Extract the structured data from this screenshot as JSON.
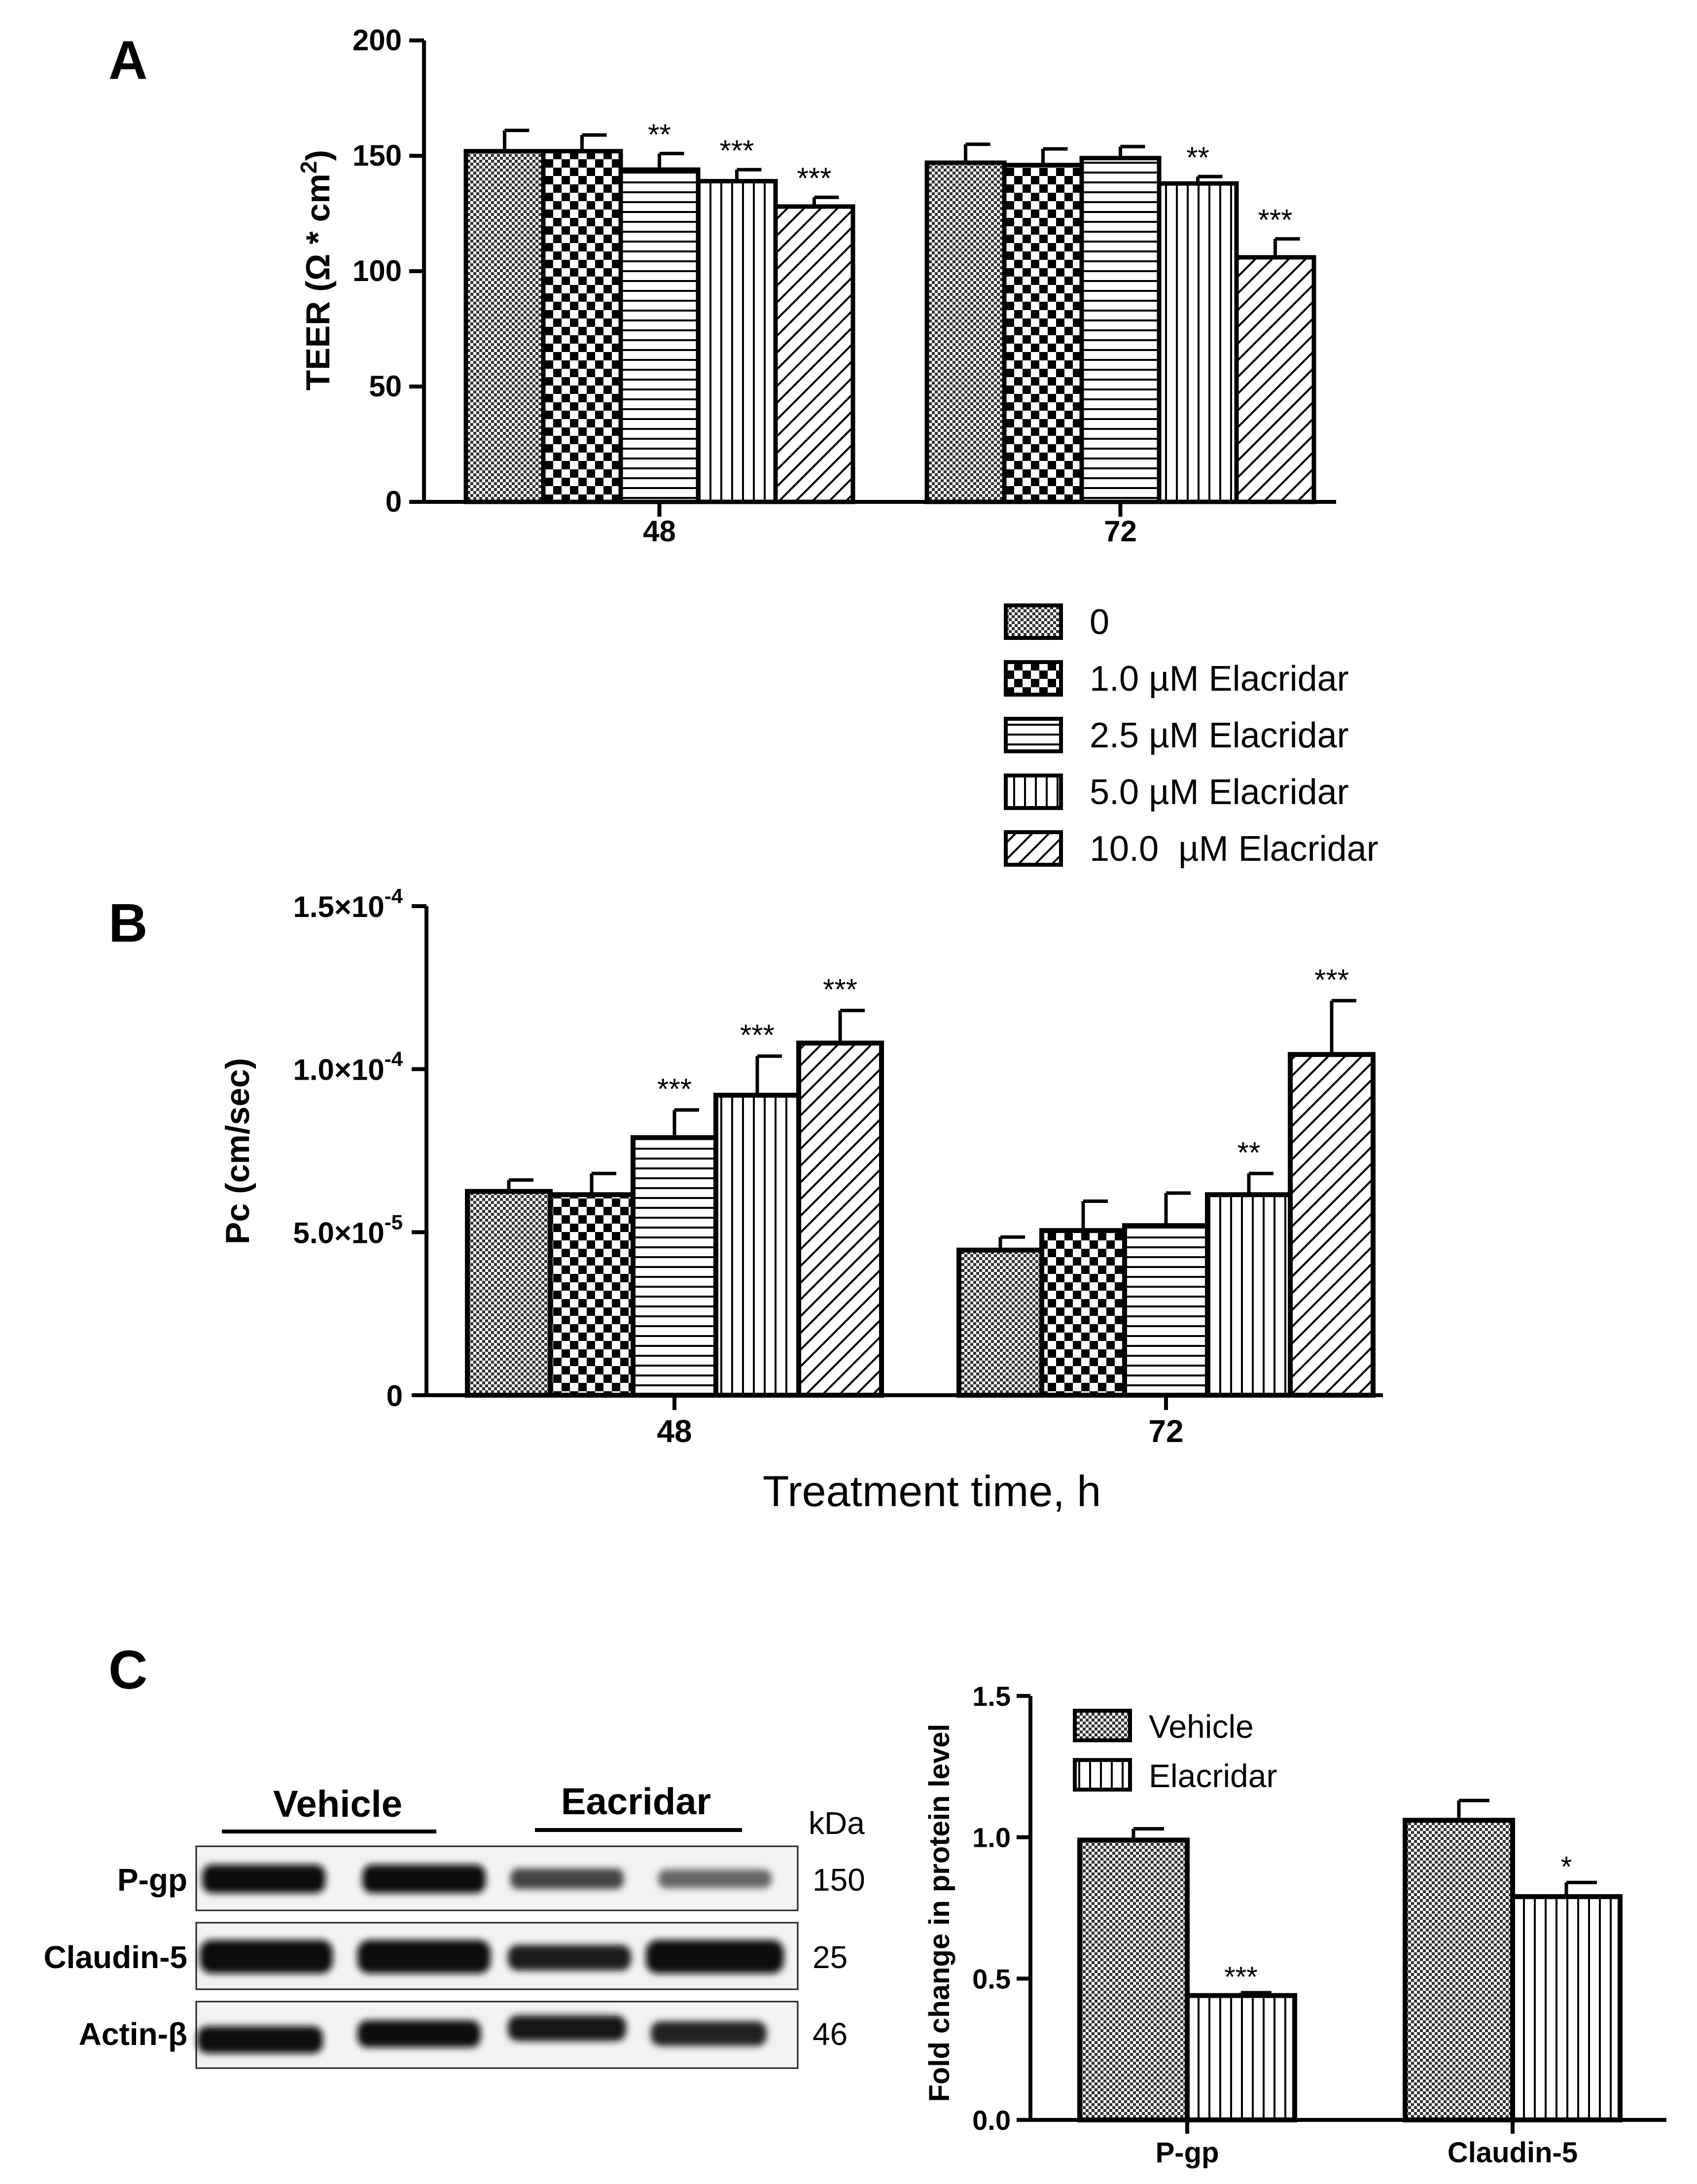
{
  "chart_data": [
    {
      "id": "A",
      "type": "bar",
      "panel_label": "A",
      "title": "",
      "xlabel": "",
      "ylabel": "TEER (Ω * cm",
      "ylabel_sup": "2",
      "ylabel_tail": ")",
      "ylim": [
        0,
        200
      ],
      "yticks": [
        "0",
        "50",
        "100",
        "150",
        "200"
      ],
      "categories": [
        "48",
        "72"
      ],
      "series": [
        {
          "name": "0",
          "pattern": "checker-fine",
          "values": [
            152,
            147
          ],
          "errors": [
            9,
            8
          ],
          "sig": [
            "",
            ""
          ]
        },
        {
          "name": "1.0 µM Elacridar",
          "pattern": "checker-coarse",
          "values": [
            152,
            146
          ],
          "errors": [
            7,
            7
          ],
          "sig": [
            "",
            ""
          ]
        },
        {
          "name": "2.5 µM Elacridar",
          "pattern": "horizontal",
          "values": [
            144,
            149
          ],
          "errors": [
            7,
            5
          ],
          "sig": [
            "**",
            ""
          ]
        },
        {
          "name": "5.0 µM Elacridar",
          "pattern": "vertical",
          "values": [
            139,
            138
          ],
          "errors": [
            5,
            3
          ],
          "sig": [
            "***",
            "**"
          ]
        },
        {
          "name": "10.0 µM Elacridar",
          "pattern": "diagonal",
          "values": [
            128,
            106
          ],
          "errors": [
            4,
            8
          ],
          "sig": [
            "***",
            "***"
          ]
        }
      ]
    },
    {
      "id": "B",
      "type": "bar",
      "panel_label": "B",
      "title": "",
      "xlabel": "Treatment time, h",
      "ylabel": "Pc (cm/sec)",
      "ylim": [
        0,
        0.00015
      ],
      "yticks": [
        {
          "base": "0",
          "exp": ""
        },
        {
          "base": "5.0×10",
          "exp": "-5"
        },
        {
          "base": "1.0×10",
          "exp": "-4"
        },
        {
          "base": "1.5×10",
          "exp": "-4"
        }
      ],
      "categories": [
        "48",
        "72"
      ],
      "series": [
        {
          "name": "0",
          "pattern": "checker-fine",
          "values": [
            6.25e-05,
            4.45e-05
          ],
          "errors": [
            3.5e-06,
            4e-06
          ],
          "sig": [
            "",
            ""
          ]
        },
        {
          "name": "1.0 µM Elacridar",
          "pattern": "checker-coarse",
          "values": [
            6.15e-05,
            5.05e-05
          ],
          "errors": [
            6.5e-06,
            9e-06
          ],
          "sig": [
            "",
            ""
          ]
        },
        {
          "name": "2.5 µM Elacridar",
          "pattern": "horizontal",
          "values": [
            7.9e-05,
            5.2e-05
          ],
          "errors": [
            8.5e-06,
            1e-05
          ],
          "sig": [
            "***",
            ""
          ]
        },
        {
          "name": "5.0 µM Elacridar",
          "pattern": "vertical",
          "values": [
            9.2e-05,
            6.15e-05
          ],
          "errors": [
            1.2e-05,
            6.5e-06
          ],
          "sig": [
            "***",
            "**"
          ]
        },
        {
          "name": "10.0 µM Elacridar",
          "pattern": "diagonal",
          "values": [
            0.000108,
            0.0001045
          ],
          "errors": [
            1e-05,
            1.65e-05
          ],
          "sig": [
            "***",
            "***"
          ]
        }
      ]
    },
    {
      "id": "C",
      "type": "bar",
      "panel_label": "C",
      "title": "",
      "xlabel": "",
      "ylabel": "Fold change in protein level",
      "ylim": [
        0,
        1.5
      ],
      "yticks": [
        "0.0",
        "0.5",
        "1.0",
        "1.5"
      ],
      "categories": [
        "P-gp",
        "Claudin-5"
      ],
      "series": [
        {
          "name": "Vehicle",
          "pattern": "checker-fine",
          "values": [
            0.99,
            1.06
          ],
          "errors": [
            0.04,
            0.07
          ],
          "sig": [
            "",
            ""
          ]
        },
        {
          "name": "Elacridar",
          "pattern": "vertical",
          "values": [
            0.44,
            0.79
          ],
          "errors": [
            0.01,
            0.05
          ],
          "sig": [
            "***",
            "*"
          ]
        }
      ]
    }
  ],
  "legend_AB": [
    "0",
    "1.0 µM Elacridar",
    "2.5 µM Elacridar",
    "5.0 µM Elacridar",
    "10.0  µM Elacridar"
  ],
  "legend_C": [
    "Vehicle",
    "Elacridar"
  ],
  "blot": {
    "group_labels": [
      "Vehicle",
      "Eacridar"
    ],
    "unit_label": "kDa",
    "rows": [
      {
        "protein": "P-gp",
        "kda": "150"
      },
      {
        "protein": "Claudin-5",
        "kda": "25"
      },
      {
        "protein": "Actin-β",
        "kda": "46"
      }
    ]
  }
}
